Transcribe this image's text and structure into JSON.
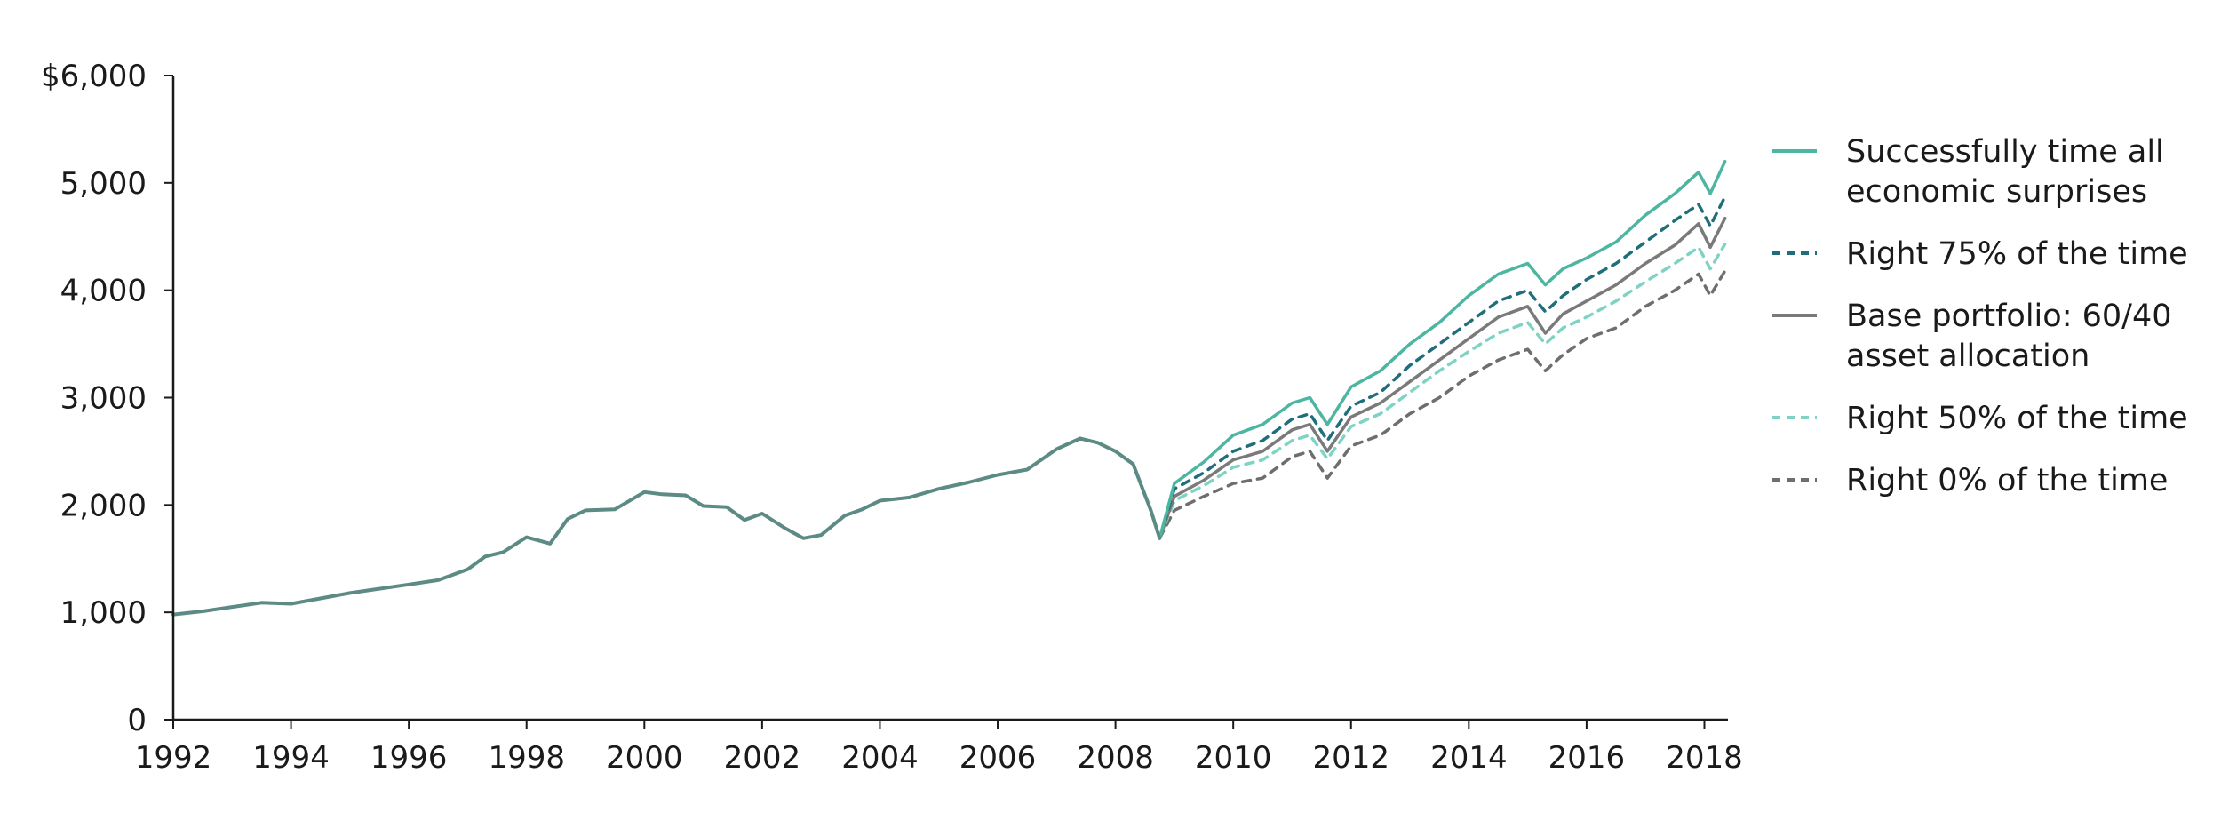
{
  "chart_data": {
    "type": "line",
    "title": "",
    "xlabel": "",
    "ylabel": "",
    "xlim": [
      1992,
      2018.4
    ],
    "ylim": [
      0,
      6000
    ],
    "x_ticks": [
      {
        "value": 1992,
        "label": "1992"
      },
      {
        "value": 1994,
        "label": "1994"
      },
      {
        "value": 1996,
        "label": "1996"
      },
      {
        "value": 1998,
        "label": "1998"
      },
      {
        "value": 2000,
        "label": "2000"
      },
      {
        "value": 2002,
        "label": "2002"
      },
      {
        "value": 2004,
        "label": "2004"
      },
      {
        "value": 2006,
        "label": "2006"
      },
      {
        "value": 2008,
        "label": "2008"
      },
      {
        "value": 2010,
        "label": "2010"
      },
      {
        "value": 2012,
        "label": "2012"
      },
      {
        "value": 2014,
        "label": "2014"
      },
      {
        "value": 2016,
        "label": "2016"
      },
      {
        "value": 2018,
        "label": "2018"
      }
    ],
    "y_ticks": [
      {
        "value": 0,
        "label": "0"
      },
      {
        "value": 1000,
        "label": "1,000"
      },
      {
        "value": 2000,
        "label": "2,000"
      },
      {
        "value": 3000,
        "label": "3,000"
      },
      {
        "value": 4000,
        "label": "4,000"
      },
      {
        "value": 5000,
        "label": "5,000"
      },
      {
        "value": 6000,
        "label": "$6,000"
      }
    ],
    "grid": false,
    "legend_position": "right",
    "shared_series": {
      "x": [
        1992,
        1992.5,
        1993,
        1993.5,
        1994,
        1994.5,
        1995,
        1995.5,
        1996,
        1996.5,
        1997,
        1997.3,
        1997.6,
        1998,
        1998.4,
        1998.7,
        1999,
        1999.5,
        2000,
        2000.3,
        2000.7,
        2001,
        2001.4,
        2001.7,
        2002,
        2002.4,
        2002.7,
        2003,
        2003.4,
        2003.7,
        2004,
        2004.5,
        2005,
        2005.5,
        2006,
        2006.5,
        2007,
        2007.4,
        2007.7,
        2008,
        2008.3,
        2008.6,
        2008.75
      ],
      "values": [
        980,
        1010,
        1050,
        1090,
        1080,
        1130,
        1180,
        1220,
        1260,
        1300,
        1400,
        1520,
        1560,
        1700,
        1640,
        1870,
        1950,
        1960,
        2120,
        2100,
        2090,
        1990,
        1980,
        1860,
        1920,
        1780,
        1690,
        1720,
        1900,
        1960,
        2040,
        2070,
        2150,
        2210,
        2280,
        2330,
        2520,
        2620,
        2580,
        2500,
        2380,
        1950,
        1690
      ]
    },
    "branch_x": [
      2008.75,
      2009,
      2009.5,
      2010,
      2010.5,
      2011,
      2011.3,
      2011.6,
      2012,
      2012.5,
      2013,
      2013.5,
      2014,
      2014.5,
      2015,
      2015.3,
      2015.6,
      2016,
      2016.5,
      2017,
      2017.5,
      2017.9,
      2018.1,
      2018.35
    ],
    "series": [
      {
        "name": "Successfully time all economic surprises",
        "legend_lines": [
          "Successfully time all",
          "economic surprises"
        ],
        "color": "#4db6a0",
        "dash": "solid",
        "values": [
          1690,
          2200,
          2400,
          2650,
          2750,
          2950,
          3000,
          2750,
          3100,
          3250,
          3500,
          3700,
          3950,
          4150,
          4250,
          4050,
          4200,
          4300,
          4450,
          4700,
          4900,
          5100,
          4900,
          5200
        ]
      },
      {
        "name": "Right 75% of the time",
        "legend_lines": [
          "Right 75% of the time"
        ],
        "color": "#1f6e7a",
        "dash": "dashed",
        "values": [
          1690,
          2150,
          2300,
          2500,
          2600,
          2800,
          2850,
          2600,
          2920,
          3050,
          3300,
          3500,
          3700,
          3900,
          4000,
          3800,
          3950,
          4100,
          4250,
          4450,
          4650,
          4800,
          4600,
          4870
        ]
      },
      {
        "name": "Base portfolio: 60/40 asset allocation",
        "legend_lines": [
          "Base portfolio: 60/40",
          "asset allocation"
        ],
        "color": "#7a7a7a",
        "dash": "solid",
        "values": [
          1690,
          2080,
          2230,
          2420,
          2500,
          2700,
          2750,
          2500,
          2820,
          2950,
          3150,
          3350,
          3550,
          3750,
          3850,
          3600,
          3780,
          3900,
          4050,
          4250,
          4420,
          4620,
          4400,
          4670
        ]
      },
      {
        "name": "Right 50% of the time",
        "legend_lines": [
          "Right 50% of the time"
        ],
        "color": "#7fd3c4",
        "dash": "dashed",
        "values": [
          1690,
          2040,
          2180,
          2350,
          2420,
          2600,
          2650,
          2430,
          2730,
          2850,
          3050,
          3250,
          3430,
          3600,
          3700,
          3500,
          3650,
          3750,
          3900,
          4080,
          4250,
          4400,
          4200,
          4430
        ]
      },
      {
        "name": "Right 0% of the time",
        "legend_lines": [
          "Right 0% of the time"
        ],
        "color": "#6e6e6e",
        "dash": "dashed",
        "values": [
          1690,
          1950,
          2080,
          2200,
          2250,
          2450,
          2500,
          2250,
          2550,
          2650,
          2850,
          3000,
          3200,
          3350,
          3450,
          3250,
          3400,
          3550,
          3650,
          3850,
          4000,
          4150,
          3950,
          4180
        ]
      }
    ]
  }
}
